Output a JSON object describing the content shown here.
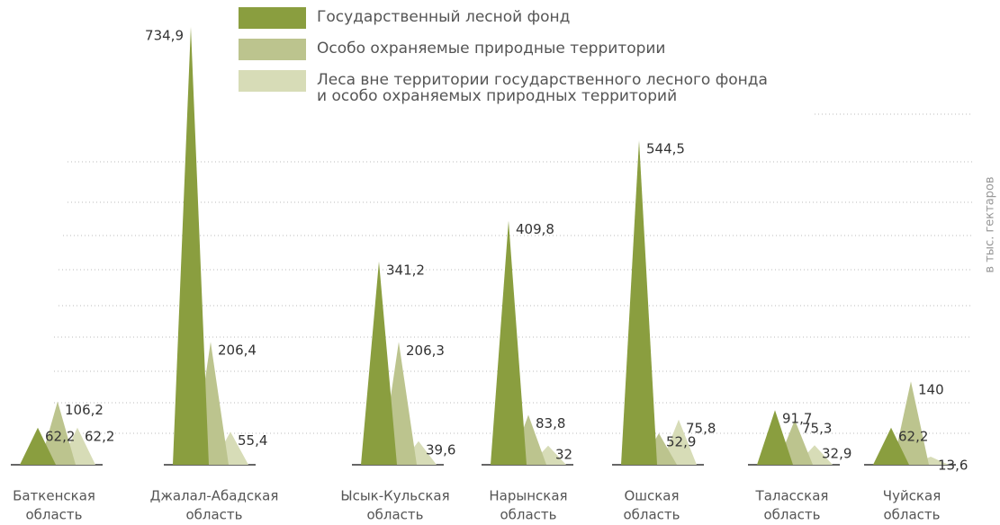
{
  "chart_data": {
    "type": "peak",
    "axis_label": "в тыс. гектаров",
    "categories": [
      [
        "Баткенская",
        "область"
      ],
      [
        "Джалал-Абадская",
        "область"
      ],
      [
        "Ысык-Кульская",
        "область"
      ],
      [
        "Нарынская",
        "область"
      ],
      [
        "Ошская",
        "область"
      ],
      [
        "Таласская",
        "область"
      ],
      [
        "Чуйская",
        "область"
      ]
    ],
    "ylim": [
      0,
      750
    ],
    "series": [
      {
        "name": "Государственный лесной фонд",
        "color": "#8a9e3f",
        "values": [
          62.2,
          734.9,
          341.2,
          409.8,
          544.5,
          91.7,
          62.2
        ],
        "value_labels": [
          "62,2",
          "734,9",
          "341,2",
          "409,8",
          "544,5",
          "91,7",
          "62,2"
        ]
      },
      {
        "name": "Особо охраняемые природные территории",
        "color": "#bcc48e",
        "values": [
          106.2,
          206.4,
          206.3,
          83.8,
          52.9,
          75.3,
          140
        ],
        "value_labels": [
          "106,2",
          "206,4",
          "206,3",
          "83,8",
          "52,9",
          "75,3",
          "140"
        ]
      },
      {
        "name": "Леса вне территории государственного лесного фонда\nи особо охраняемых природных территорий",
        "color": "#d7dcb7",
        "values": [
          62.2,
          55.4,
          39.6,
          32,
          75.8,
          32.9,
          13.6
        ],
        "value_labels": [
          "62,2",
          "55,4",
          "39,6",
          "32",
          "75,8",
          "32,9",
          "13,6"
        ]
      }
    ]
  }
}
